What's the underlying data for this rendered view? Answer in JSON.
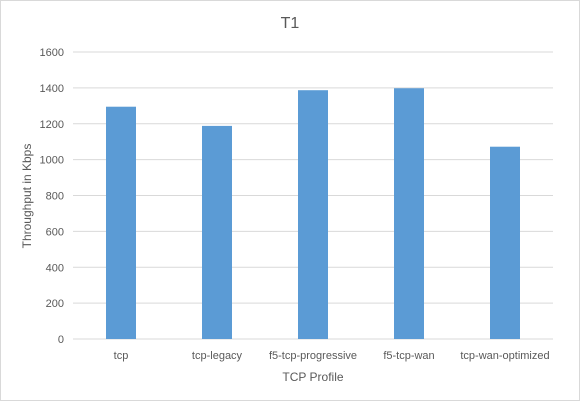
{
  "chart_data": {
    "type": "bar",
    "title": "T1",
    "xlabel": "TCP Profile",
    "ylabel": "Throughput in Kbps",
    "categories": [
      "tcp",
      "tcp-legacy",
      "f5-tcp-progressive",
      "f5-tcp-wan",
      "tcp-wan-optimized"
    ],
    "values": [
      1295,
      1188,
      1387,
      1398,
      1072
    ],
    "ylim": [
      0,
      1600
    ],
    "yticks": [
      0,
      200,
      400,
      600,
      800,
      1000,
      1200,
      1400,
      1600
    ],
    "grid": true,
    "legend": "none",
    "bar_color": "#5b9bd5"
  }
}
